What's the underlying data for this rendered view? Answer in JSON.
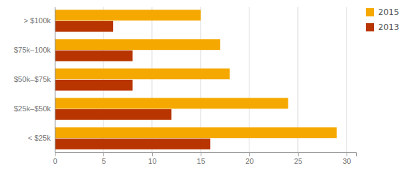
{
  "chart_data": {
    "type": "bar",
    "orientation": "horizontal",
    "categories": [
      "> $100k",
      "$75k–100k",
      "$50k–$75k",
      "$25k–$50k",
      "< $25k"
    ],
    "series": [
      {
        "name": "2015",
        "color": "#F5A800",
        "values": [
          15,
          17,
          18,
          24,
          29
        ]
      },
      {
        "name": "2013",
        "color": "#B83500",
        "values": [
          6,
          8,
          8,
          12,
          16
        ]
      }
    ],
    "xlim": [
      0,
      31
    ],
    "xticks": [
      0,
      5,
      10,
      15,
      20,
      25,
      30
    ],
    "grid": true,
    "legend": "right"
  }
}
